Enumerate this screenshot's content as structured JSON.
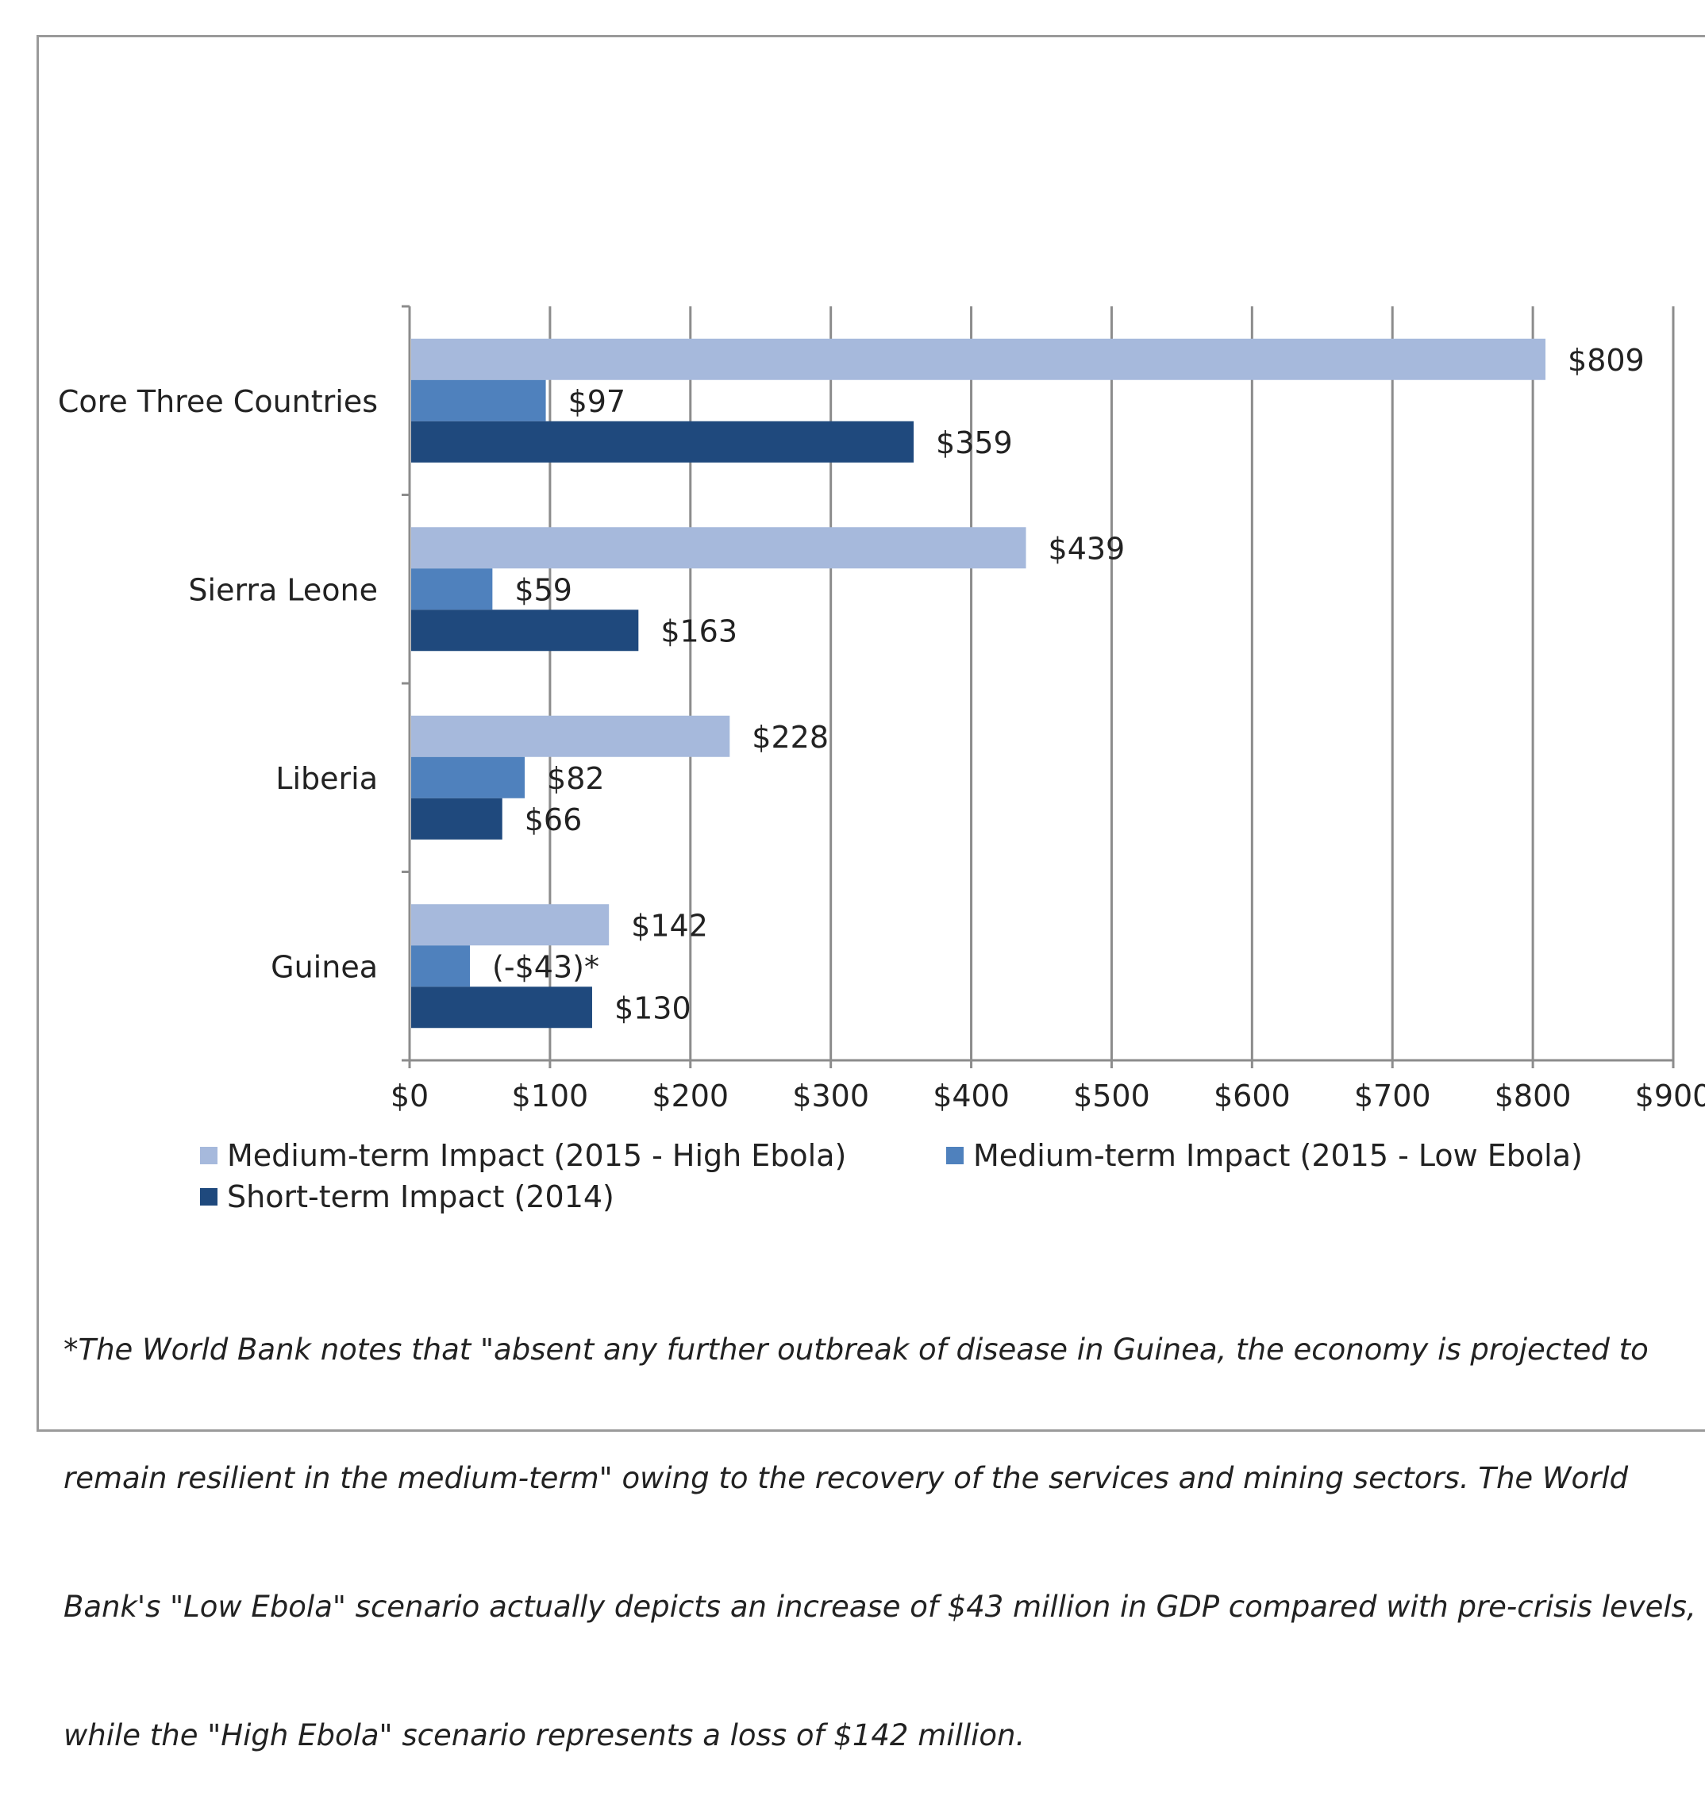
{
  "chart_data": {
    "type": "bar",
    "orientation": "horizontal",
    "categories": [
      "Core Three Countries",
      "Sierra Leone",
      "Liberia",
      "Guinea"
    ],
    "series": [
      {
        "name": "Medium-term Impact (2015 - High Ebola)",
        "color": "#a6b9dc",
        "values": [
          809,
          439,
          228,
          142
        ],
        "labels": [
          "$809",
          "$439",
          "$228",
          "$142"
        ]
      },
      {
        "name": "Medium-term Impact (2015 - Low Ebola)",
        "color": "#4f81bd",
        "values": [
          97,
          59,
          82,
          43
        ],
        "labels": [
          "$97",
          "$59",
          "$82",
          "(-$43)*"
        ]
      },
      {
        "name": "Short-term Impact (2014)",
        "color": "#1f497d",
        "values": [
          359,
          163,
          66,
          130
        ],
        "labels": [
          "$359",
          "$163",
          "$66",
          "$130"
        ]
      }
    ],
    "xlim": [
      0,
      900
    ],
    "xticks": [
      0,
      100,
      200,
      300,
      400,
      500,
      600,
      700,
      800,
      900
    ],
    "xtick_labels": [
      "$0",
      "$100",
      "$200",
      "$300",
      "$400",
      "$500",
      "$600",
      "$700",
      "$800",
      "$900"
    ],
    "grid": true,
    "legend_position": "bottom",
    "title": "",
    "xlabel": "",
    "ylabel": ""
  },
  "footnote": [
    "*The World Bank notes that \"absent any further outbreak of disease in Guinea, the economy is projected to",
    "remain resilient in the medium-term\" owing to the recovery of the services and mining sectors. The World",
    "Bank's \"Low Ebola\" scenario actually depicts an increase of $43 million in GDP compared with pre-crisis levels,",
    "while the \"High Ebola\" scenario represents a loss of $142 million."
  ]
}
